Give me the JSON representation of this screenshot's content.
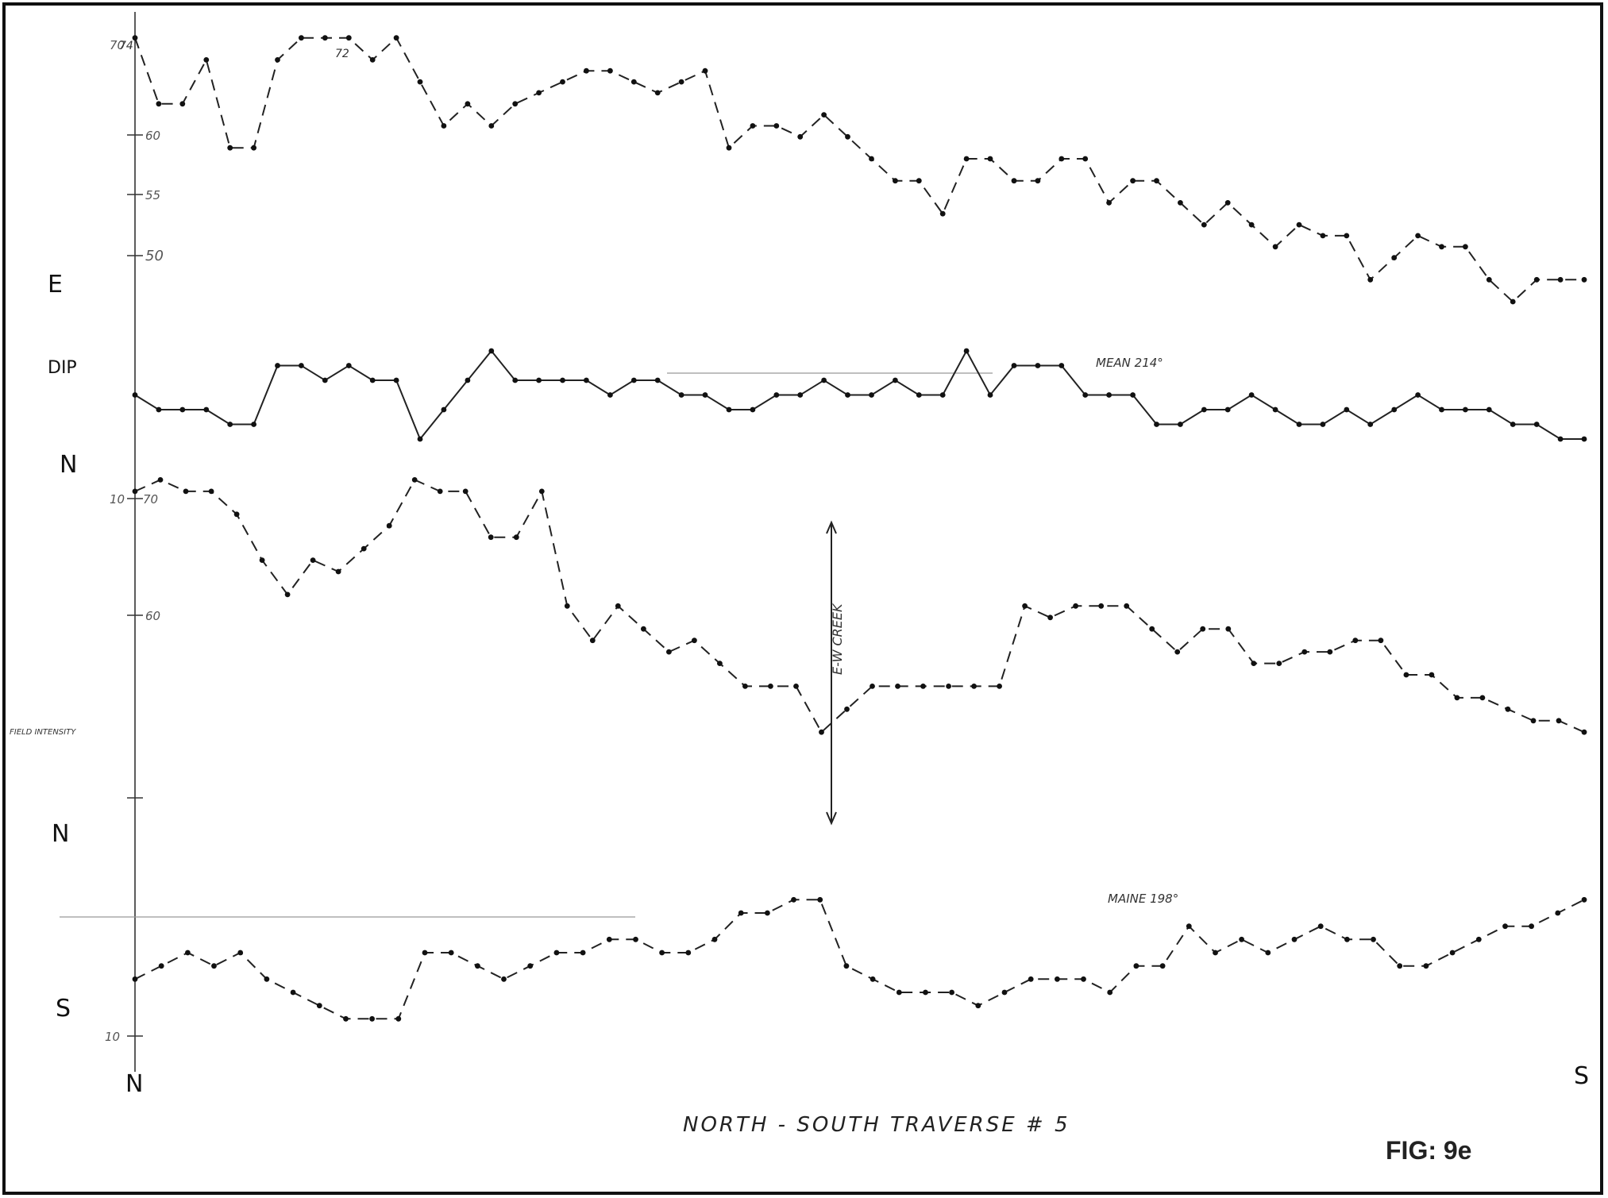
{
  "figure": {
    "label": "FIG: 9e",
    "title": "NORTH - SOUTH TRAVERSE # 5",
    "start_label": "N",
    "end_label": "S"
  },
  "side_labels": {
    "e": "E",
    "dip": "DIP",
    "n1": "N",
    "field_intensity": "FIELD INTENSITY",
    "n2": "N",
    "s": "S"
  },
  "annotations": {
    "creek": "E-W CREEK",
    "mean_upper": "MEAN 214°",
    "mean_lower": "MAINE 198°",
    "peak_1": "74",
    "peak_2": "72"
  },
  "axis_ticks": {
    "e_70": "70",
    "e_60": "60",
    "e_55": "55",
    "e_50": "50",
    "n_10": "10",
    "n_70": "70",
    "n_60": "60",
    "n_low": "10"
  },
  "chart_data": {
    "type": "line",
    "x_description": "station positions along traverse from N to S",
    "series": [
      {
        "values": [
          72,
          66,
          66,
          70,
          62,
          62,
          70,
          72,
          72,
          72,
          70,
          72,
          68,
          64,
          66,
          64,
          66,
          67,
          68,
          69,
          69,
          68,
          67,
          68,
          69,
          62,
          64,
          64,
          63,
          65,
          63,
          61,
          59,
          59,
          56,
          61,
          61,
          59,
          59,
          61,
          61,
          57,
          59,
          59,
          57,
          55,
          57,
          55,
          53,
          55,
          54,
          54,
          50,
          52,
          54,
          53,
          53,
          50,
          48,
          50,
          50,
          50
        ],
        "ylim": [
          48,
          74
        ]
      },
      {
        "values": [
          5,
          4,
          4,
          4,
          3,
          3,
          7,
          7,
          6,
          7,
          6,
          6,
          2,
          4,
          6,
          8,
          6,
          6,
          6,
          6,
          5,
          6,
          6,
          5,
          5,
          4,
          4,
          5,
          5,
          6,
          5,
          5,
          6,
          5,
          5,
          8,
          5,
          7,
          7,
          7,
          5,
          5,
          5,
          3,
          3,
          4,
          4,
          5,
          4,
          3,
          3,
          4,
          3,
          4,
          5,
          4,
          4,
          4,
          3,
          3,
          2,
          2
        ],
        "ylim": [
          0,
          10
        ]
      },
      {
        "values": [
          70,
          71,
          70,
          70,
          68,
          64,
          61,
          64,
          63,
          65,
          67,
          71,
          70,
          70,
          66,
          66,
          70,
          60,
          57,
          60,
          58,
          56,
          57,
          55,
          53,
          53,
          53,
          49,
          51,
          53,
          53,
          53,
          53,
          53,
          53,
          60,
          59,
          60,
          60,
          60,
          58,
          56,
          58,
          58,
          55,
          55,
          56,
          56,
          57,
          57,
          54,
          54,
          52,
          52,
          51,
          50,
          50,
          49
        ],
        "ylim": [
          45,
          72
        ]
      },
      {
        "values": [
          4,
          5,
          6,
          5,
          6,
          4,
          3,
          2,
          1,
          1,
          1,
          6,
          6,
          5,
          4,
          5,
          6,
          6,
          7,
          7,
          6,
          6,
          7,
          9,
          9,
          10,
          10,
          5,
          4,
          3,
          3,
          3,
          2,
          3,
          4,
          4,
          4,
          3,
          5,
          5,
          8,
          6,
          7,
          6,
          7,
          8,
          7,
          7,
          5,
          5,
          6,
          7,
          8,
          8,
          9,
          10
        ],
        "ylim": [
          0,
          12
        ]
      }
    ]
  }
}
